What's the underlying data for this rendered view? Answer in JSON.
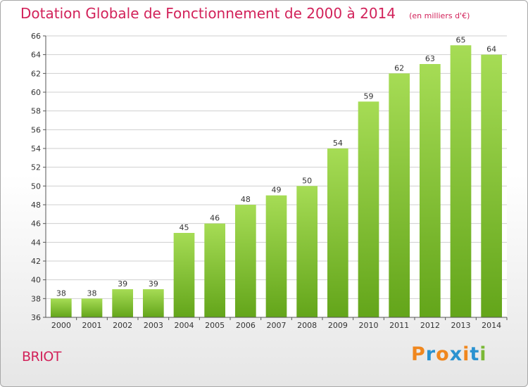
{
  "colors": {
    "title": "#d2225a",
    "bar_light": "#a6dc55",
    "bar_dark": "#63a51a",
    "grid": "#cfcfcf",
    "axis": "#555555",
    "text": "#333333"
  },
  "commune": "BRIOT",
  "brand": {
    "text": "Proxiti",
    "letter_colors": [
      "#f0871e",
      "#2a92d0",
      "#f0871e",
      "#2a92d0",
      "#f0871e",
      "#2a92d0",
      "#7ab836"
    ]
  },
  "chart_data": {
    "type": "bar",
    "title": "Dotation Globale de Fonctionnement de 2000 à 2014",
    "subtitle": "(en milliers d'€)",
    "xlabel": "",
    "ylabel": "",
    "categories": [
      "2000",
      "2001",
      "2002",
      "2003",
      "2004",
      "2005",
      "2006",
      "2007",
      "2008",
      "2009",
      "2010",
      "2011",
      "2012",
      "2013",
      "2014"
    ],
    "values": [
      38,
      38,
      39,
      39,
      45,
      46,
      48,
      49,
      50,
      54,
      59,
      62,
      63,
      65,
      64
    ],
    "ylim": [
      36,
      66
    ],
    "yticks": [
      36,
      38,
      40,
      42,
      44,
      46,
      48,
      50,
      52,
      54,
      56,
      58,
      60,
      62,
      64,
      66
    ],
    "grid": true,
    "legend": "none"
  }
}
